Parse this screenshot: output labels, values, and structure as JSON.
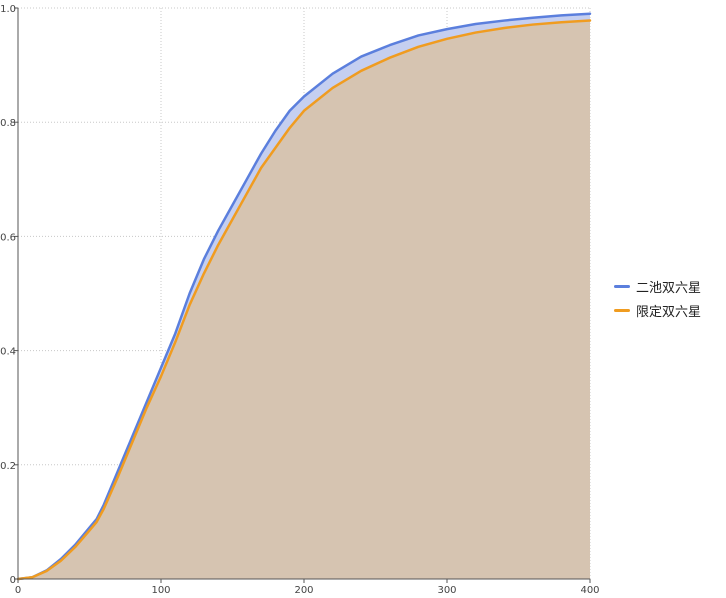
{
  "chart_data": {
    "type": "area",
    "title": "",
    "xlabel": "",
    "ylabel": "",
    "xlim": [
      0,
      400
    ],
    "ylim": [
      0,
      1
    ],
    "x_ticks": [
      "0",
      "100",
      "200",
      "300",
      "400"
    ],
    "y_ticks": [
      "0",
      "0.2",
      "0.4",
      "0.6",
      "0.8",
      "1.0"
    ],
    "grid": true,
    "legend_position": "right",
    "x": [
      0,
      10,
      20,
      30,
      40,
      50,
      55,
      60,
      70,
      80,
      90,
      100,
      110,
      120,
      130,
      140,
      150,
      160,
      170,
      180,
      190,
      200,
      220,
      240,
      260,
      280,
      300,
      320,
      340,
      360,
      380,
      400
    ],
    "series": [
      {
        "name": "二池双六星",
        "color": "#5b7fdd",
        "fill": "#c5cff0",
        "values": [
          0,
          0.003,
          0.015,
          0.035,
          0.06,
          0.09,
          0.105,
          0.13,
          0.19,
          0.25,
          0.31,
          0.37,
          0.43,
          0.5,
          0.56,
          0.61,
          0.655,
          0.7,
          0.745,
          0.785,
          0.82,
          0.845,
          0.885,
          0.915,
          0.935,
          0.952,
          0.963,
          0.972,
          0.978,
          0.983,
          0.987,
          0.99
        ]
      },
      {
        "name": "限定双六星",
        "color": "#f09c20",
        "fill": "#d6c4b1",
        "values": [
          0,
          0.003,
          0.014,
          0.032,
          0.056,
          0.085,
          0.1,
          0.123,
          0.18,
          0.24,
          0.3,
          0.355,
          0.415,
          0.48,
          0.535,
          0.585,
          0.63,
          0.675,
          0.72,
          0.755,
          0.79,
          0.82,
          0.86,
          0.89,
          0.913,
          0.932,
          0.946,
          0.957,
          0.965,
          0.971,
          0.975,
          0.978
        ]
      }
    ]
  }
}
